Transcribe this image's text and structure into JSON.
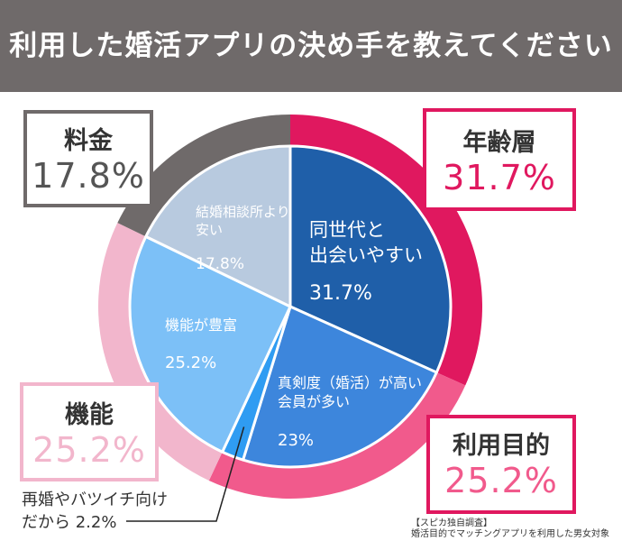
{
  "title": "利用した婚活アプリの決め手を教えてください",
  "colors": {
    "header_bg": "#6f6a6a",
    "magenta": "#e0185f",
    "pink": "#f15a8c",
    "light_pink": "#f2b6cc",
    "gray": "#6f6a6a",
    "navy": "#1f5fa9",
    "mid_blue": "#3d86dc",
    "bright_blue": "#2f9cf2",
    "light_blue": "#7cc0f7",
    "gray_blue": "#b8cadf"
  },
  "chart_data": [
    {
      "type": "pie",
      "level": "inner",
      "unit": "%",
      "categories": [
        "同世代と出会いやすい",
        "真剣度（婚活）が高い会員が多い",
        "再婚やバツイチ向けだから",
        "機能が豊富",
        "結婚相談所より安い"
      ],
      "values": [
        31.7,
        23,
        2.2,
        25.2,
        17.8
      ],
      "labels": [
        {
          "lines": [
            "同世代と",
            "出会いやすい"
          ],
          "value": "31.7%"
        },
        {
          "lines": [
            "真剣度（婚活）が高い",
            "会員が多い"
          ],
          "value": "23%"
        },
        {
          "lines": [
            "再婚やバツイチ向け",
            "だから  2.2%"
          ],
          "value": ""
        },
        {
          "lines": [
            "機能が豊富"
          ],
          "value": "25.2%"
        },
        {
          "lines": [
            "結婚相談所より",
            "安い"
          ],
          "value": "17.8%"
        }
      ]
    },
    {
      "type": "pie",
      "level": "outer",
      "unit": "%",
      "categories": [
        "年齢層",
        "利用目的",
        "機能",
        "料金"
      ],
      "values": [
        31.7,
        25.2,
        25.2,
        17.8
      ],
      "labels": [
        "31.7%",
        "25.2%",
        "25.2%",
        "17.8%"
      ]
    }
  ],
  "source_note": {
    "line1": "【スピカ独自調査】",
    "line2": "婚活目的でマッチングアプリを利用した男女対象"
  }
}
